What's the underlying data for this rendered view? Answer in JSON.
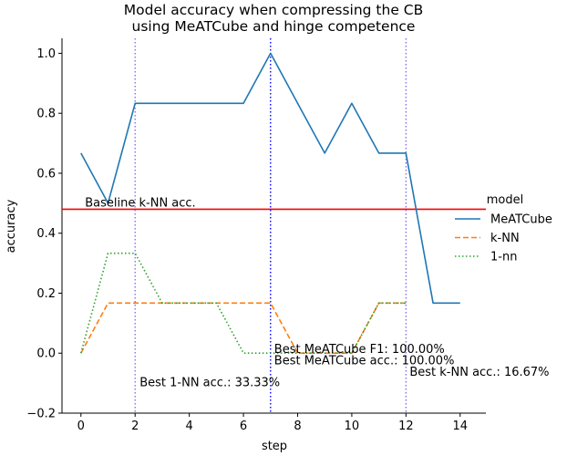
{
  "chart_data": {
    "type": "line",
    "title": "Model accuracy when compressing the CB",
    "subtitle": "using MeATCube and hinge competence",
    "xlabel": "step",
    "ylabel": "accuracy",
    "xlim": [
      -0.7,
      14.95
    ],
    "ylim": [
      -0.2,
      1.05
    ],
    "xticks": [
      0,
      2,
      4,
      6,
      8,
      10,
      12,
      14
    ],
    "yticks": [
      -0.2,
      0.0,
      0.2,
      0.4,
      0.6,
      0.8,
      1.0
    ],
    "xtick_labels": [
      "0",
      "2",
      "4",
      "6",
      "8",
      "10",
      "12",
      "14"
    ],
    "ytick_labels": [
      "−0.2",
      "0.0",
      "0.2",
      "0.4",
      "0.6",
      "0.8",
      "1.0"
    ],
    "grid": false,
    "legend": {
      "title": "model",
      "placement": "right"
    },
    "series": [
      {
        "name": "MeATCube",
        "color": "#1f77b4",
        "dash": "solid",
        "x": [
          0,
          1,
          2,
          3,
          4,
          5,
          6,
          7,
          8,
          9,
          10,
          11,
          12,
          13,
          14
        ],
        "y": [
          0.667,
          0.5,
          0.833,
          0.833,
          0.833,
          0.833,
          0.833,
          1.0,
          0.833,
          0.667,
          0.833,
          0.667,
          0.667,
          0.167,
          0.167
        ]
      },
      {
        "name": "k-NN",
        "color": "#ff7f0e",
        "dash": "dashed",
        "x": [
          0,
          1,
          2,
          3,
          4,
          5,
          6,
          7,
          8,
          9,
          10,
          11,
          12
        ],
        "y": [
          0.0,
          0.167,
          0.167,
          0.167,
          0.167,
          0.167,
          0.167,
          0.167,
          0.0,
          0.0,
          0.0,
          0.167,
          0.167
        ]
      },
      {
        "name": "1-nn",
        "color": "#2ca02c",
        "dash": "dotted",
        "x": [
          0,
          1,
          2,
          3,
          4,
          5,
          6,
          7,
          8,
          9,
          10,
          11,
          12
        ],
        "y": [
          0.0,
          0.333,
          0.333,
          0.167,
          0.167,
          0.167,
          0.0,
          0.0,
          0.0,
          0.0,
          0.0,
          0.167,
          0.167
        ]
      }
    ],
    "hlines": [
      {
        "y": 0.48,
        "color": "#ff0000",
        "label": "Baseline k-NN acc."
      }
    ],
    "vlines": [
      {
        "x": 2,
        "color": "#7b68ee",
        "label": "Best 1-NN acc.: 33.33%"
      },
      {
        "x": 7,
        "color": "#7b68ee",
        "label": "Best MeATCube F1: 100.00%"
      },
      {
        "x": 7,
        "color": "#0000ff",
        "label": "Best MeATCube acc.: 100.00%"
      },
      {
        "x": 12,
        "color": "#7b68ee",
        "label": "Best k-NN acc.: 16.67%"
      }
    ]
  }
}
